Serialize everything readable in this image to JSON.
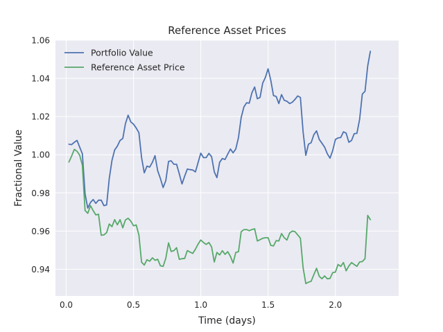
{
  "chart_data": {
    "type": "line",
    "title": "Reference Asset Prices",
    "xlabel": "Time (days)",
    "ylabel": "Fractional Value",
    "xlim": [
      -0.08,
      2.47
    ],
    "ylim": [
      0.926,
      1.06
    ],
    "xticks": [
      0.0,
      0.5,
      1.0,
      1.5,
      2.0
    ],
    "xtick_labels": [
      "0.0",
      "0.5",
      "1.0",
      "1.5",
      "2.0"
    ],
    "yticks": [
      0.94,
      0.96,
      0.98,
      1.0,
      1.02,
      1.04,
      1.06
    ],
    "ytick_labels": [
      "0.94",
      "0.96",
      "0.98",
      "1.00",
      "1.02",
      "1.04",
      "1.06"
    ],
    "grid": true,
    "legend_position": "top-left",
    "background_color": "#eaeaf2",
    "series": [
      {
        "name": "Portfolio Value",
        "color": "#4c72b0",
        "points": [
          [
            0.02,
            1.0055
          ],
          [
            0.04,
            1.0053
          ],
          [
            0.06,
            1.0065
          ],
          [
            0.08,
            1.0075
          ],
          [
            0.1,
            1.004
          ],
          [
            0.12,
            1.0005
          ],
          [
            0.14,
            0.9795
          ],
          [
            0.16,
            0.972
          ],
          [
            0.18,
            0.975
          ],
          [
            0.2,
            0.9765
          ],
          [
            0.22,
            0.9745
          ],
          [
            0.24,
            0.9762
          ],
          [
            0.26,
            0.9762
          ],
          [
            0.28,
            0.9733
          ],
          [
            0.3,
            0.9737
          ],
          [
            0.32,
            0.9875
          ],
          [
            0.34,
            0.997
          ],
          [
            0.36,
            1.0025
          ],
          [
            0.38,
            1.0045
          ],
          [
            0.4,
            1.0075
          ],
          [
            0.42,
            1.0085
          ],
          [
            0.44,
            1.0162
          ],
          [
            0.46,
            1.0207
          ],
          [
            0.48,
            1.0172
          ],
          [
            0.5,
            1.016
          ],
          [
            0.52,
            1.014
          ],
          [
            0.54,
            1.0115
          ],
          [
            0.56,
            0.9985
          ],
          [
            0.58,
            0.9905
          ],
          [
            0.6,
            0.994
          ],
          [
            0.62,
            0.9935
          ],
          [
            0.64,
            0.996
          ],
          [
            0.66,
            0.9995
          ],
          [
            0.68,
            0.9915
          ],
          [
            0.7,
            0.9875
          ],
          [
            0.72,
            0.9828
          ],
          [
            0.74,
            0.9865
          ],
          [
            0.76,
            0.9965
          ],
          [
            0.78,
            0.9968
          ],
          [
            0.8,
            0.995
          ],
          [
            0.82,
            0.995
          ],
          [
            0.84,
            0.99
          ],
          [
            0.86,
            0.9847
          ],
          [
            0.88,
            0.9888
          ],
          [
            0.9,
            0.9925
          ],
          [
            0.92,
            0.9922
          ],
          [
            0.94,
            0.992
          ],
          [
            0.96,
            0.991
          ],
          [
            0.98,
            0.996
          ],
          [
            1.0,
            1.0008
          ],
          [
            1.02,
            0.9985
          ],
          [
            1.04,
            0.9985
          ],
          [
            1.06,
            1.0007
          ],
          [
            1.08,
            0.999
          ],
          [
            1.1,
            0.991
          ],
          [
            1.12,
            0.988
          ],
          [
            1.14,
            0.996
          ],
          [
            1.16,
            0.998
          ],
          [
            1.18,
            0.9975
          ],
          [
            1.2,
            1.0003
          ],
          [
            1.22,
            1.003
          ],
          [
            1.24,
            1.001
          ],
          [
            1.26,
            1.003
          ],
          [
            1.28,
            1.009
          ],
          [
            1.3,
            1.0195
          ],
          [
            1.32,
            1.025
          ],
          [
            1.34,
            1.0272
          ],
          [
            1.36,
            1.027
          ],
          [
            1.38,
            1.0325
          ],
          [
            1.4,
            1.0355
          ],
          [
            1.42,
            1.0293
          ],
          [
            1.44,
            1.03
          ],
          [
            1.46,
            1.0375
          ],
          [
            1.48,
            1.0405
          ],
          [
            1.5,
            1.045
          ],
          [
            1.52,
            1.039
          ],
          [
            1.54,
            1.031
          ],
          [
            1.56,
            1.0305
          ],
          [
            1.58,
            1.0268
          ],
          [
            1.6,
            1.0315
          ],
          [
            1.62,
            1.0285
          ],
          [
            1.64,
            1.028
          ],
          [
            1.66,
            1.0268
          ],
          [
            1.68,
            1.0275
          ],
          [
            1.7,
            1.029
          ],
          [
            1.72,
            1.0308
          ],
          [
            1.74,
            1.03
          ],
          [
            1.76,
            1.012
          ],
          [
            1.78,
            0.9997
          ],
          [
            1.8,
            1.0055
          ],
          [
            1.82,
            1.0063
          ],
          [
            1.84,
            1.0105
          ],
          [
            1.86,
            1.0125
          ],
          [
            1.88,
            1.008
          ],
          [
            1.9,
            1.006
          ],
          [
            1.92,
            1.004
          ],
          [
            1.94,
            1.0005
          ],
          [
            1.96,
            0.9982
          ],
          [
            1.98,
            1.0022
          ],
          [
            2.0,
            1.008
          ],
          [
            2.02,
            1.0088
          ],
          [
            2.04,
            1.009
          ],
          [
            2.06,
            1.012
          ],
          [
            2.08,
            1.0113
          ],
          [
            2.1,
            1.0065
          ],
          [
            2.12,
            1.0075
          ],
          [
            2.14,
            1.011
          ],
          [
            2.16,
            1.0112
          ],
          [
            2.18,
            1.0185
          ],
          [
            2.2,
            1.0318
          ],
          [
            2.22,
            1.0332
          ],
          [
            2.24,
            1.0465
          ],
          [
            2.26,
            1.0542
          ]
        ]
      },
      {
        "name": "Reference Asset Price",
        "color": "#55a868",
        "points": [
          [
            0.02,
            0.9962
          ],
          [
            0.04,
            0.9993
          ],
          [
            0.06,
            1.0028
          ],
          [
            0.08,
            1.0018
          ],
          [
            0.1,
            0.9998
          ],
          [
            0.12,
            0.9945
          ],
          [
            0.14,
            0.9708
          ],
          [
            0.16,
            0.9693
          ],
          [
            0.18,
            0.9733
          ],
          [
            0.2,
            0.9707
          ],
          [
            0.22,
            0.9685
          ],
          [
            0.24,
            0.9688
          ],
          [
            0.26,
            0.9578
          ],
          [
            0.28,
            0.958
          ],
          [
            0.3,
            0.9592
          ],
          [
            0.32,
            0.9637
          ],
          [
            0.34,
            0.9623
          ],
          [
            0.36,
            0.966
          ],
          [
            0.38,
            0.9633
          ],
          [
            0.4,
            0.966
          ],
          [
            0.42,
            0.9617
          ],
          [
            0.44,
            0.9658
          ],
          [
            0.46,
            0.9667
          ],
          [
            0.48,
            0.9652
          ],
          [
            0.5,
            0.9628
          ],
          [
            0.52,
            0.9632
          ],
          [
            0.54,
            0.9578
          ],
          [
            0.56,
            0.9437
          ],
          [
            0.58,
            0.9422
          ],
          [
            0.6,
            0.945
          ],
          [
            0.62,
            0.9442
          ],
          [
            0.64,
            0.946
          ],
          [
            0.66,
            0.9447
          ],
          [
            0.68,
            0.9452
          ],
          [
            0.7,
            0.9418
          ],
          [
            0.72,
            0.9415
          ],
          [
            0.74,
            0.9458
          ],
          [
            0.76,
            0.9538
          ],
          [
            0.78,
            0.9493
          ],
          [
            0.8,
            0.9497
          ],
          [
            0.82,
            0.9513
          ],
          [
            0.84,
            0.9452
          ],
          [
            0.86,
            0.9455
          ],
          [
            0.88,
            0.9457
          ],
          [
            0.9,
            0.9498
          ],
          [
            0.92,
            0.949
          ],
          [
            0.94,
            0.9483
          ],
          [
            0.96,
            0.9505
          ],
          [
            0.98,
            0.9532
          ],
          [
            1.0,
            0.9553
          ],
          [
            1.02,
            0.954
          ],
          [
            1.04,
            0.953
          ],
          [
            1.06,
            0.954
          ],
          [
            1.08,
            0.9517
          ],
          [
            1.1,
            0.9438
          ],
          [
            1.12,
            0.9488
          ],
          [
            1.14,
            0.9475
          ],
          [
            1.16,
            0.9497
          ],
          [
            1.18,
            0.9478
          ],
          [
            1.2,
            0.9492
          ],
          [
            1.22,
            0.9467
          ],
          [
            1.24,
            0.9432
          ],
          [
            1.26,
            0.9488
          ],
          [
            1.28,
            0.9492
          ],
          [
            1.3,
            0.9597
          ],
          [
            1.32,
            0.9607
          ],
          [
            1.34,
            0.9608
          ],
          [
            1.36,
            0.9602
          ],
          [
            1.38,
            0.9608
          ],
          [
            1.4,
            0.9612
          ],
          [
            1.42,
            0.9548
          ],
          [
            1.44,
            0.9555
          ],
          [
            1.46,
            0.9562
          ],
          [
            1.48,
            0.9565
          ],
          [
            1.5,
            0.9565
          ],
          [
            1.52,
            0.9525
          ],
          [
            1.54,
            0.9522
          ],
          [
            1.56,
            0.955
          ],
          [
            1.58,
            0.9548
          ],
          [
            1.6,
            0.9587
          ],
          [
            1.62,
            0.9565
          ],
          [
            1.64,
            0.9553
          ],
          [
            1.66,
            0.959
          ],
          [
            1.68,
            0.96
          ],
          [
            1.7,
            0.9597
          ],
          [
            1.72,
            0.958
          ],
          [
            1.74,
            0.9563
          ],
          [
            1.76,
            0.9408
          ],
          [
            1.78,
            0.9325
          ],
          [
            1.8,
            0.9332
          ],
          [
            1.82,
            0.9337
          ],
          [
            1.84,
            0.9372
          ],
          [
            1.86,
            0.9405
          ],
          [
            1.88,
            0.9363
          ],
          [
            1.9,
            0.935
          ],
          [
            1.92,
            0.9365
          ],
          [
            1.94,
            0.935
          ],
          [
            1.96,
            0.9352
          ],
          [
            1.98,
            0.9382
          ],
          [
            2.0,
            0.9385
          ],
          [
            2.02,
            0.9425
          ],
          [
            2.04,
            0.9415
          ],
          [
            2.06,
            0.9435
          ],
          [
            2.08,
            0.9392
          ],
          [
            2.1,
            0.9417
          ],
          [
            2.12,
            0.9435
          ],
          [
            2.14,
            0.9425
          ],
          [
            2.16,
            0.9415
          ],
          [
            2.18,
            0.9438
          ],
          [
            2.2,
            0.944
          ],
          [
            2.22,
            0.9455
          ],
          [
            2.24,
            0.9682
          ],
          [
            2.26,
            0.966
          ]
        ]
      }
    ]
  }
}
